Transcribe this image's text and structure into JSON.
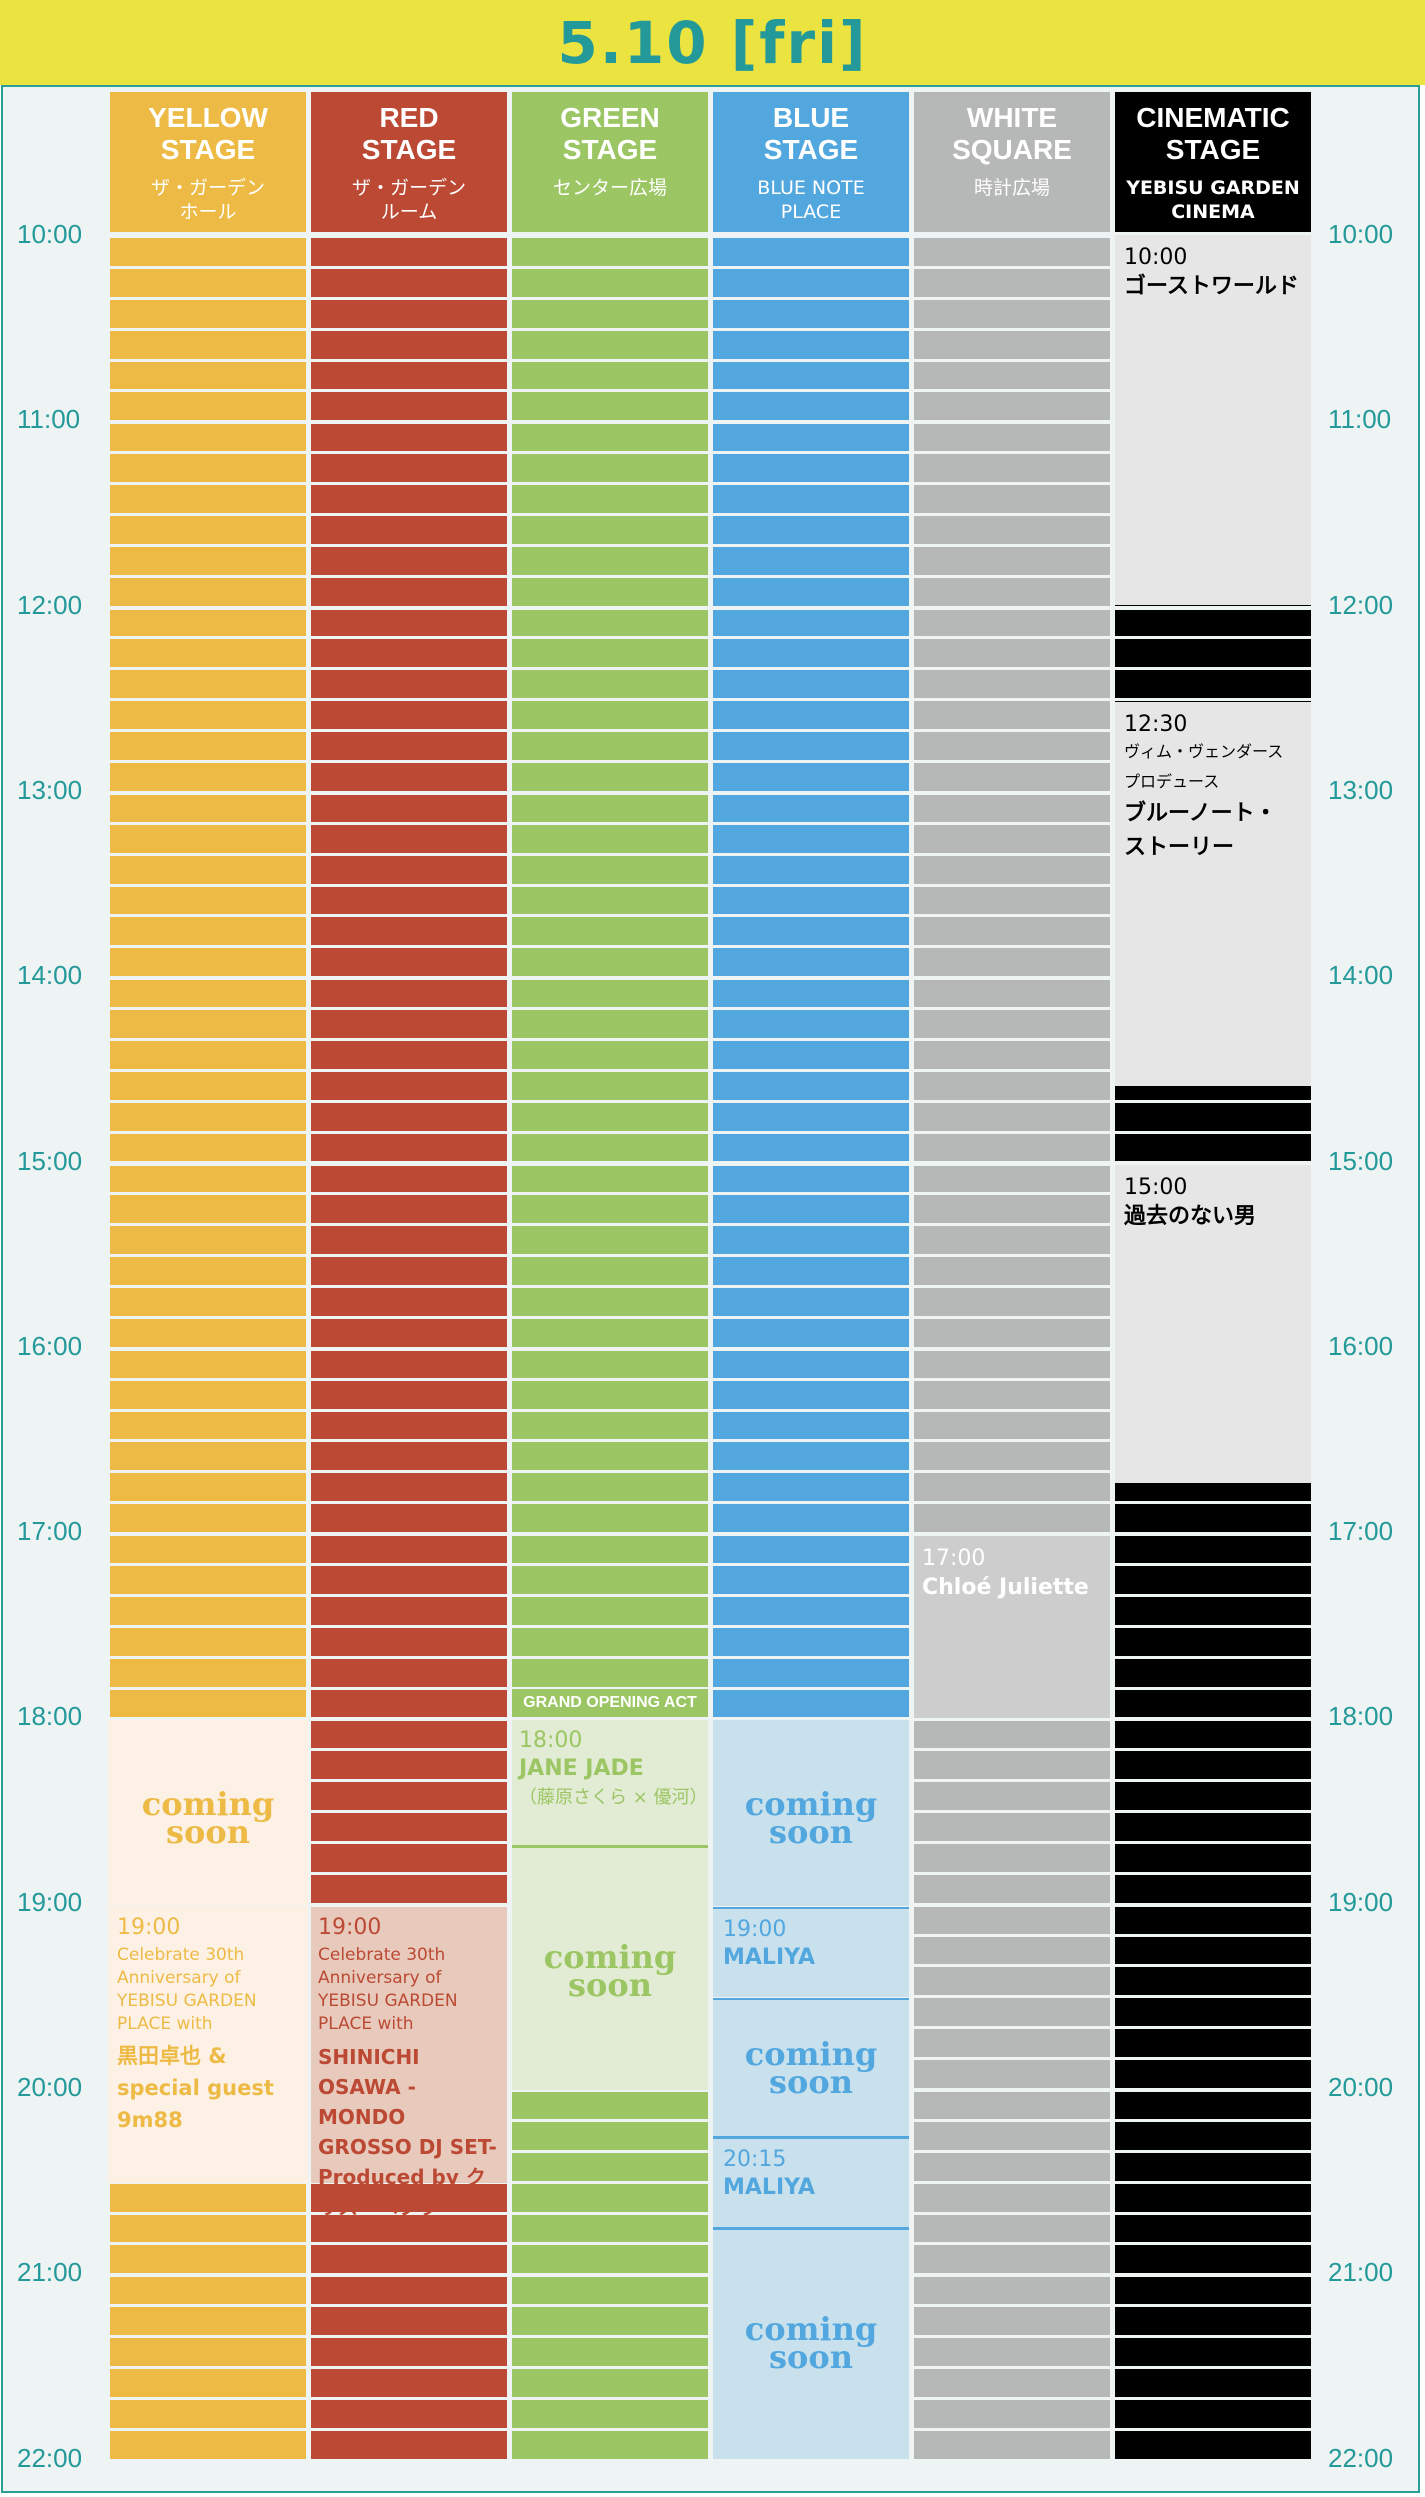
{
  "header": {
    "title": "5.10 [fri]",
    "bg": "#ebe33f",
    "fg": "#24999a"
  },
  "times": [
    "10:00",
    "11:00",
    "12:00",
    "13:00",
    "14:00",
    "15:00",
    "16:00",
    "17:00",
    "18:00",
    "19:00",
    "20:00",
    "21:00",
    "22:00"
  ],
  "stages": [
    {
      "name": "YELLOW\nSTAGE",
      "venue": "ザ・ガーデン\nホール",
      "color": "#edbb45"
    },
    {
      "name": "RED\nSTAGE",
      "venue": "ザ・ガーデン\nルーム",
      "color": "#bb4934"
    },
    {
      "name": "GREEN\nSTAGE",
      "venue": "センター広場",
      "color": "#9bc663"
    },
    {
      "name": "BLUE\nSTAGE",
      "venue": "BLUE NOTE\nPLACE",
      "color": "#53a7df"
    },
    {
      "name": "WHITE\nSQUARE",
      "venue": "時計広場",
      "color": "#b6b8b7"
    },
    {
      "name": "CINEMATIC\nSTAGE",
      "venue": "YEBISU GARDEN\nCINEMA",
      "color": "#000000"
    }
  ],
  "coming_soon": "coming\nsoon",
  "events": {
    "yellow_cs": {
      "label": "coming\nsoon"
    },
    "yellow_1900": {
      "time": "19:00",
      "desc": "Celebrate 30th Anniversary of YEBISU GARDEN PLACE with",
      "title": "黒田卓也 & special guest 9m88"
    },
    "red_1900": {
      "time": "19:00",
      "desc": "Celebrate 30th Anniversary of YEBISU GARDEN PLACE with",
      "title": "SHINICHI OSAWA -MONDO GROSSO DJ SET- Produced by クリス・ペプラー"
    },
    "green_tag": "GRAND OPENING ACT",
    "green_1800": {
      "time": "18:00",
      "title": "JANE JADE",
      "sub": "（藤原さくら × 優河）"
    },
    "blue_1900": {
      "time": "19:00",
      "title": "MALIYA"
    },
    "blue_2015": {
      "time": "20:15",
      "title": "MALIYA"
    },
    "white_1700": {
      "time": "17:00",
      "title": "Chloé Juliette"
    },
    "cinema_1000": {
      "time": "10:00",
      "title": "ゴーストワールド"
    },
    "cinema_1230": {
      "time": "12:30",
      "sub1": "ヴィム・ヴェンダース",
      "sub2": "プロデュース",
      "title": "ブルーノート・\nストーリー"
    },
    "cinema_1500": {
      "time": "15:00",
      "title": "過去のない男"
    }
  }
}
